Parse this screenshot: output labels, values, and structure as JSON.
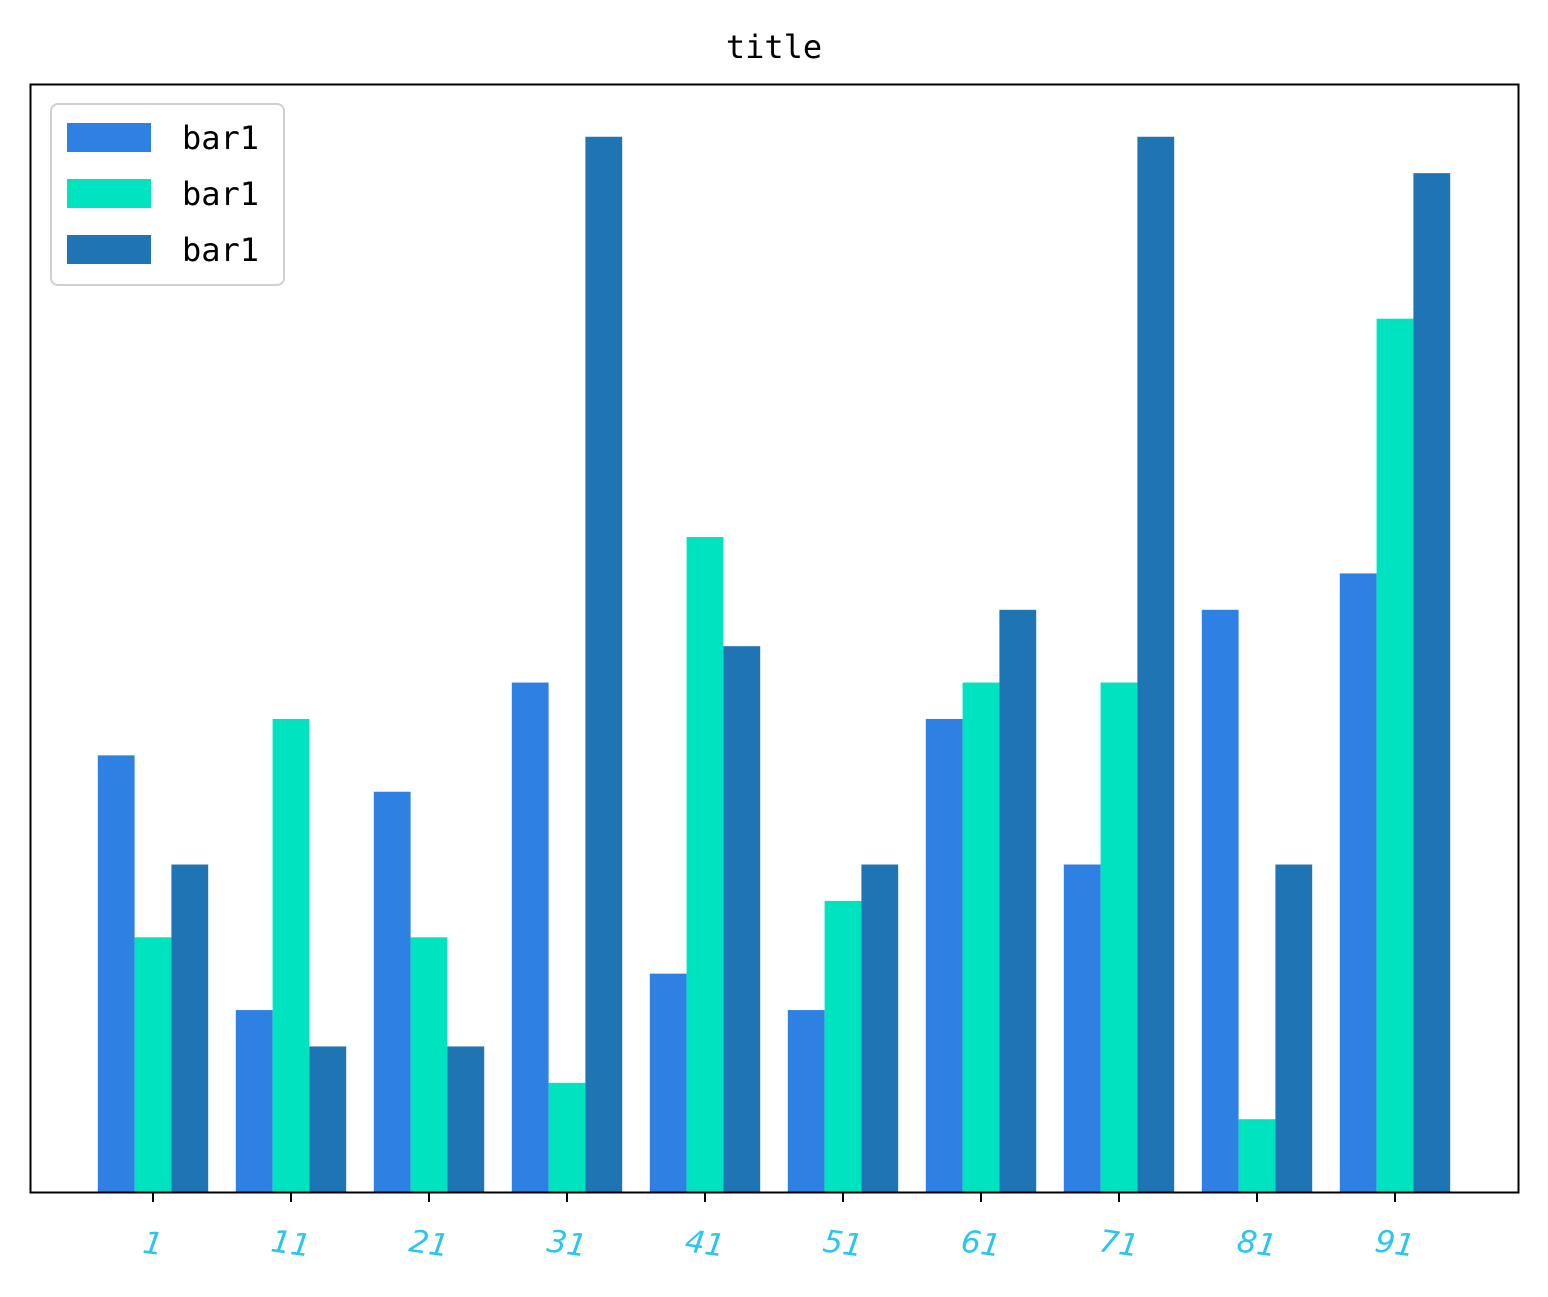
{
  "chart_data": {
    "type": "bar",
    "title": "title",
    "xlabel": "",
    "ylabel": "",
    "categories": [
      "1",
      "11",
      "21",
      "31",
      "41",
      "51",
      "61",
      "71",
      "81",
      "91"
    ],
    "series": [
      {
        "name": "bar1",
        "color": "#2f80e3",
        "values": [
          12,
          5,
          11,
          14,
          6,
          5,
          13,
          9,
          16,
          17
        ]
      },
      {
        "name": "bar1",
        "color": "#00e3c0",
        "values": [
          7,
          13,
          7,
          3,
          18,
          8,
          14,
          14,
          2,
          24
        ]
      },
      {
        "name": "bar1",
        "color": "#1f75b4",
        "values": [
          9,
          4,
          4,
          29,
          15,
          9,
          16,
          29,
          9,
          28
        ]
      }
    ],
    "ylim": [
      0,
      30.45
    ],
    "y_axis_visible": false,
    "grid": false,
    "legend_position": "top-left",
    "tick_label_color": "#29c6f2",
    "tick_label_style": "italic, rotated"
  }
}
